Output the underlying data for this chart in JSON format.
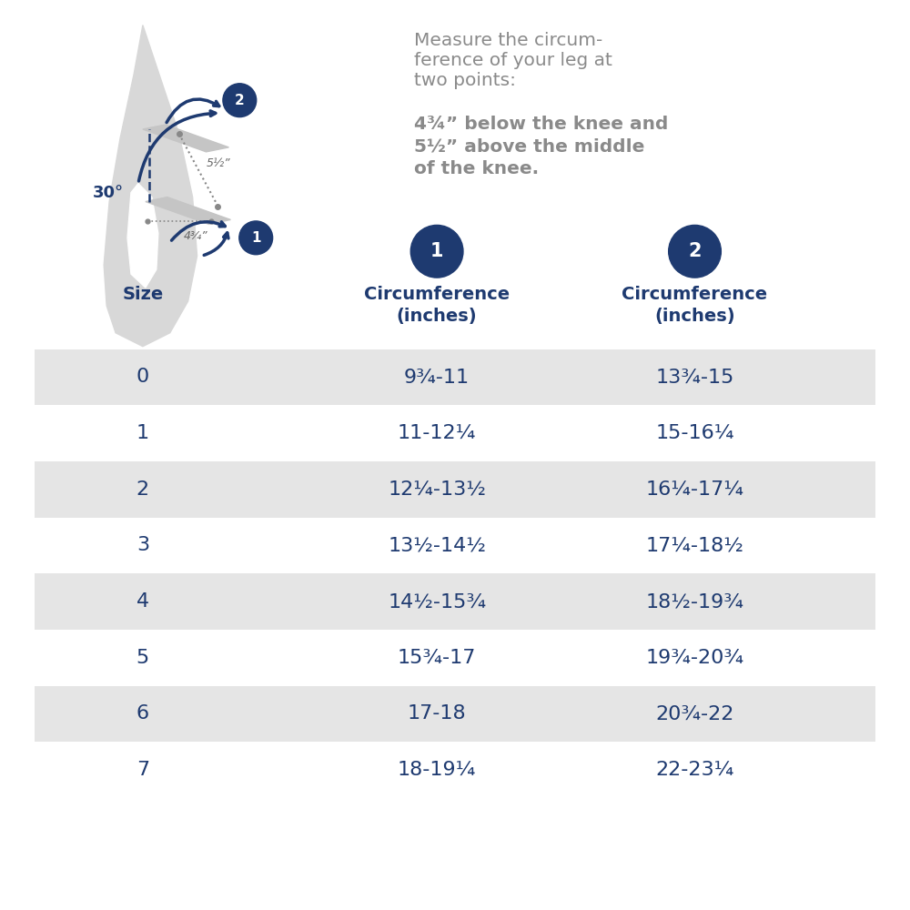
{
  "bg_color": "#ffffff",
  "dark_blue": "#1e3a70",
  "light_gray": "#e5e5e5",
  "text_gray": "#8a8a8a",
  "title_text1": "Measure the circum-",
  "title_text2": "ference of your leg at",
  "title_text3": "two points:",
  "bold_text1": "4¾” below the knee and",
  "bold_text2": "5½” above the middle",
  "bold_text3": "of the knee.",
  "col_header0": "Size",
  "col_header1": "Circumference\n(inches)",
  "col_header2": "Circumference\n(inches)",
  "sizes": [
    "0",
    "1",
    "2",
    "3",
    "4",
    "5",
    "6",
    "7"
  ],
  "circ1": [
    "9¾-11",
    "11-12¼",
    "12¼-13½",
    "13½-14½",
    "14½-15¾",
    "15¾-17",
    "17-18",
    "18-19¼"
  ],
  "circ2": [
    "13¾-15",
    "15-16¼",
    "16¼-17¼",
    "17¼-18½",
    "18½-19¾",
    "19¾-20¾",
    "20¾-22",
    "22-23¼"
  ],
  "shaded_rows": [
    0,
    2,
    4,
    6
  ],
  "label_5half": "5½”",
  "label_4threequarter": "4¾”",
  "label_30deg": "30°"
}
